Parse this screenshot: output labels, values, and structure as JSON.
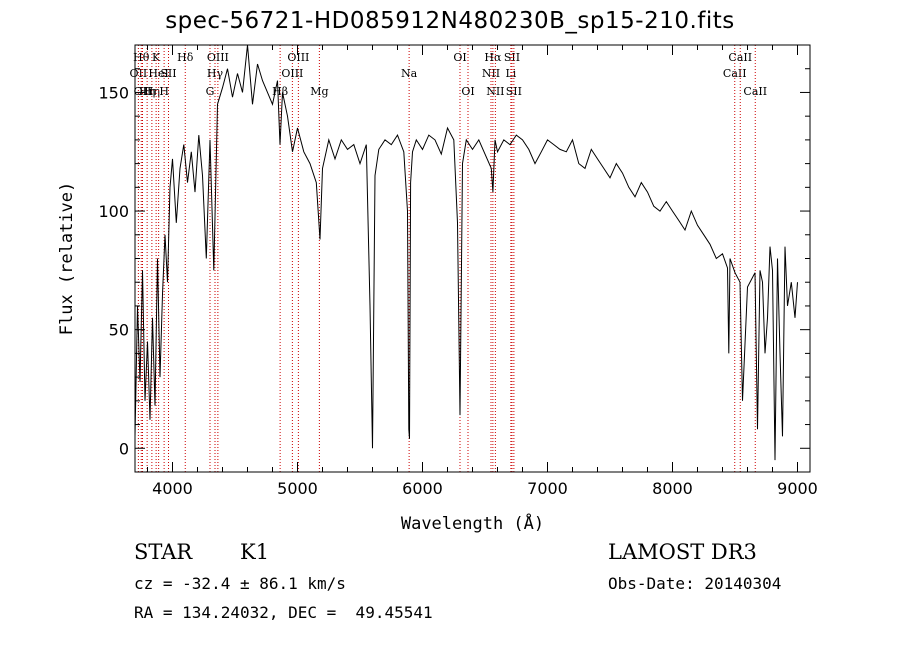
{
  "chart_data": {
    "type": "line",
    "title": "spec-56721-HD085912N480230B_sp15-210.fits",
    "xlabel": "Wavelength (Å)",
    "ylabel": "Flux (relative)",
    "xlim": [
      3700,
      9100
    ],
    "ylim": [
      -10,
      170
    ],
    "xticks": [
      4000,
      5000,
      6000,
      7000,
      8000,
      9000
    ],
    "yticks": [
      0,
      50,
      100,
      150
    ],
    "series": [
      {
        "x": [
          3700,
          3720,
          3740,
          3760,
          3780,
          3800,
          3820,
          3840,
          3860,
          3880,
          3900,
          3920,
          3940,
          3960,
          3980,
          4000,
          4030,
          4060,
          4090,
          4120,
          4150,
          4180,
          4210,
          4240,
          4270,
          4300,
          4330,
          4360,
          4400,
          4440,
          4480,
          4520,
          4560,
          4600,
          4640,
          4680,
          4720,
          4760,
          4800,
          4840,
          4860,
          4880,
          4920,
          4960,
          5000,
          5050,
          5100,
          5150,
          5180,
          5200,
          5250,
          5300,
          5350,
          5400,
          5450,
          5500,
          5550,
          5580,
          5600,
          5620,
          5650,
          5700,
          5750,
          5800,
          5850,
          5880,
          5890,
          5896,
          5905,
          5920,
          5950,
          6000,
          6050,
          6100,
          6150,
          6200,
          6250,
          6280,
          6300,
          6320,
          6350,
          6400,
          6450,
          6500,
          6550,
          6563,
          6580,
          6600,
          6650,
          6700,
          6750,
          6800,
          6850,
          6900,
          6950,
          7000,
          7050,
          7100,
          7150,
          7200,
          7250,
          7300,
          7350,
          7400,
          7450,
          7500,
          7550,
          7600,
          7650,
          7700,
          7750,
          7800,
          7850,
          7900,
          7950,
          8000,
          8050,
          8100,
          8150,
          8200,
          8250,
          8300,
          8350,
          8400,
          8440,
          8450,
          8460,
          8500,
          8540,
          8560,
          8600,
          8640,
          8660,
          8680,
          8700,
          8720,
          8740,
          8760,
          8780,
          8800,
          8820,
          8840,
          8860,
          8880,
          8900,
          8920,
          8950,
          8980,
          9000
        ],
        "values": [
          5,
          60,
          28,
          75,
          20,
          45,
          12,
          55,
          18,
          80,
          30,
          65,
          90,
          70,
          110,
          122,
          95,
          118,
          128,
          112,
          125,
          108,
          132,
          115,
          80,
          130,
          75,
          145,
          152,
          160,
          148,
          158,
          150,
          170,
          145,
          162,
          155,
          150,
          145,
          155,
          128,
          150,
          140,
          125,
          135,
          125,
          120,
          112,
          88,
          118,
          130,
          122,
          130,
          126,
          128,
          120,
          128,
          60,
          0,
          115,
          126,
          130,
          128,
          132,
          125,
          100,
          8,
          4,
          112,
          125,
          130,
          126,
          132,
          130,
          124,
          135,
          130,
          95,
          14,
          120,
          130,
          126,
          130,
          124,
          118,
          108,
          130,
          125,
          130,
          128,
          132,
          130,
          126,
          120,
          125,
          130,
          128,
          126,
          125,
          130,
          120,
          118,
          126,
          122,
          118,
          114,
          120,
          116,
          110,
          106,
          112,
          108,
          102,
          100,
          104,
          100,
          96,
          92,
          100,
          94,
          90,
          86,
          80,
          82,
          76,
          40,
          80,
          74,
          70,
          20,
          68,
          72,
          74,
          8,
          75,
          70,
          40,
          55,
          85,
          75,
          -5,
          80,
          40,
          5,
          85,
          60,
          70,
          55,
          70
        ]
      }
    ],
    "lines": [
      {
        "x": 3727,
        "label": "OII",
        "row": 2
      },
      {
        "x": 3750,
        "label": "Hθ",
        "row": 1
      },
      {
        "x": 3760,
        "label": "OII",
        "row": 3
      },
      {
        "x": 3797,
        "label": "Hη",
        "row": 3
      },
      {
        "x": 3835,
        "label": "Hη",
        "row": 3
      },
      {
        "x": 3869,
        "label": "K",
        "row": 1
      },
      {
        "x": 3889,
        "label": "HeI",
        "row": 2
      },
      {
        "x": 3933,
        "label": "H",
        "row": 3
      },
      {
        "x": 3968,
        "label": "SII",
        "row": 2
      },
      {
        "x": 4102,
        "label": "Hδ",
        "row": 1
      },
      {
        "x": 4300,
        "label": "G",
        "row": 3
      },
      {
        "x": 4340,
        "label": "Hγ",
        "row": 2
      },
      {
        "x": 4363,
        "label": "OIII",
        "row": 1
      },
      {
        "x": 4861,
        "label": "Hβ",
        "row": 3
      },
      {
        "x": 4959,
        "label": "OIII",
        "row": 2
      },
      {
        "x": 5007,
        "label": "OIII",
        "row": 1
      },
      {
        "x": 5175,
        "label": "Mg",
        "row": 3
      },
      {
        "x": 5893,
        "label": "Na",
        "row": 2
      },
      {
        "x": 6300,
        "label": "OI",
        "row": 1
      },
      {
        "x": 6364,
        "label": "OI",
        "row": 3
      },
      {
        "x": 6548,
        "label": "NII",
        "row": 2
      },
      {
        "x": 6563,
        "label": "Hα",
        "row": 1
      },
      {
        "x": 6583,
        "label": "NII",
        "row": 3
      },
      {
        "x": 6707,
        "label": "Li",
        "row": 2
      },
      {
        "x": 6716,
        "label": "SII",
        "row": 1
      },
      {
        "x": 6731,
        "label": "SII",
        "row": 3
      },
      {
        "x": 8498,
        "label": "CaII",
        "row": 2
      },
      {
        "x": 8542,
        "label": "CaII",
        "row": 1
      },
      {
        "x": 8662,
        "label": "CaII",
        "row": 3
      }
    ]
  },
  "info": {
    "object_class": "STAR",
    "subclass": "K1",
    "survey": "LAMOST DR3",
    "redshift": "cz = -32.4 ± 86.1 km/s",
    "obs_date": "Obs-Date: 20140304",
    "coords": "RA = 134.24032, DEC =  49.45541"
  }
}
